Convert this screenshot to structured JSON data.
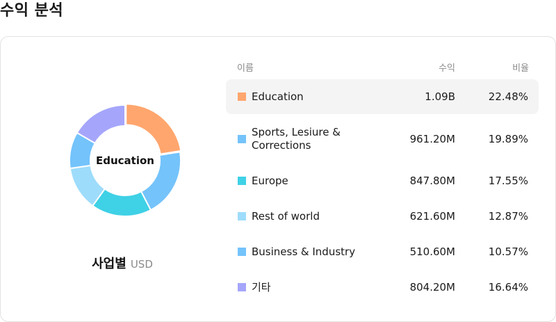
{
  "title": "수익 분석",
  "chart": {
    "center_label": "Education",
    "caption": "사업별",
    "unit": "USD"
  },
  "table": {
    "headers": {
      "name": "이름",
      "revenue": "수익",
      "ratio": "비율"
    },
    "rows": [
      {
        "name": "Education",
        "revenue": "1.09B",
        "ratio": "22.48%",
        "color": "#FFA66E",
        "active": true
      },
      {
        "name": "Sports, Lesiure & Corrections",
        "revenue": "961.20M",
        "ratio": "19.89%",
        "color": "#74C3FB",
        "active": false
      },
      {
        "name": "Europe",
        "revenue": "847.80M",
        "ratio": "17.55%",
        "color": "#3FD1E6",
        "active": false
      },
      {
        "name": "Rest of world",
        "revenue": "621.60M",
        "ratio": "12.87%",
        "color": "#9EDCFB",
        "active": false
      },
      {
        "name": "Business & Industry",
        "revenue": "510.60M",
        "ratio": "10.57%",
        "color": "#74C3FB",
        "active": false
      },
      {
        "name": "기타",
        "revenue": "804.20M",
        "ratio": "16.64%",
        "color": "#A5A6FB",
        "active": false
      }
    ]
  },
  "chart_data": {
    "type": "pie",
    "categories": [
      "Education",
      "Sports, Lesiure & Corrections",
      "Europe",
      "Rest of world",
      "Business & Industry",
      "기타"
    ],
    "values": [
      22.48,
      19.89,
      17.55,
      12.87,
      10.57,
      16.64
    ],
    "colors": [
      "#FFA66E",
      "#74C3FB",
      "#3FD1E6",
      "#9EDCFB",
      "#74C3FB",
      "#A5A6FB"
    ],
    "style": "donut"
  }
}
